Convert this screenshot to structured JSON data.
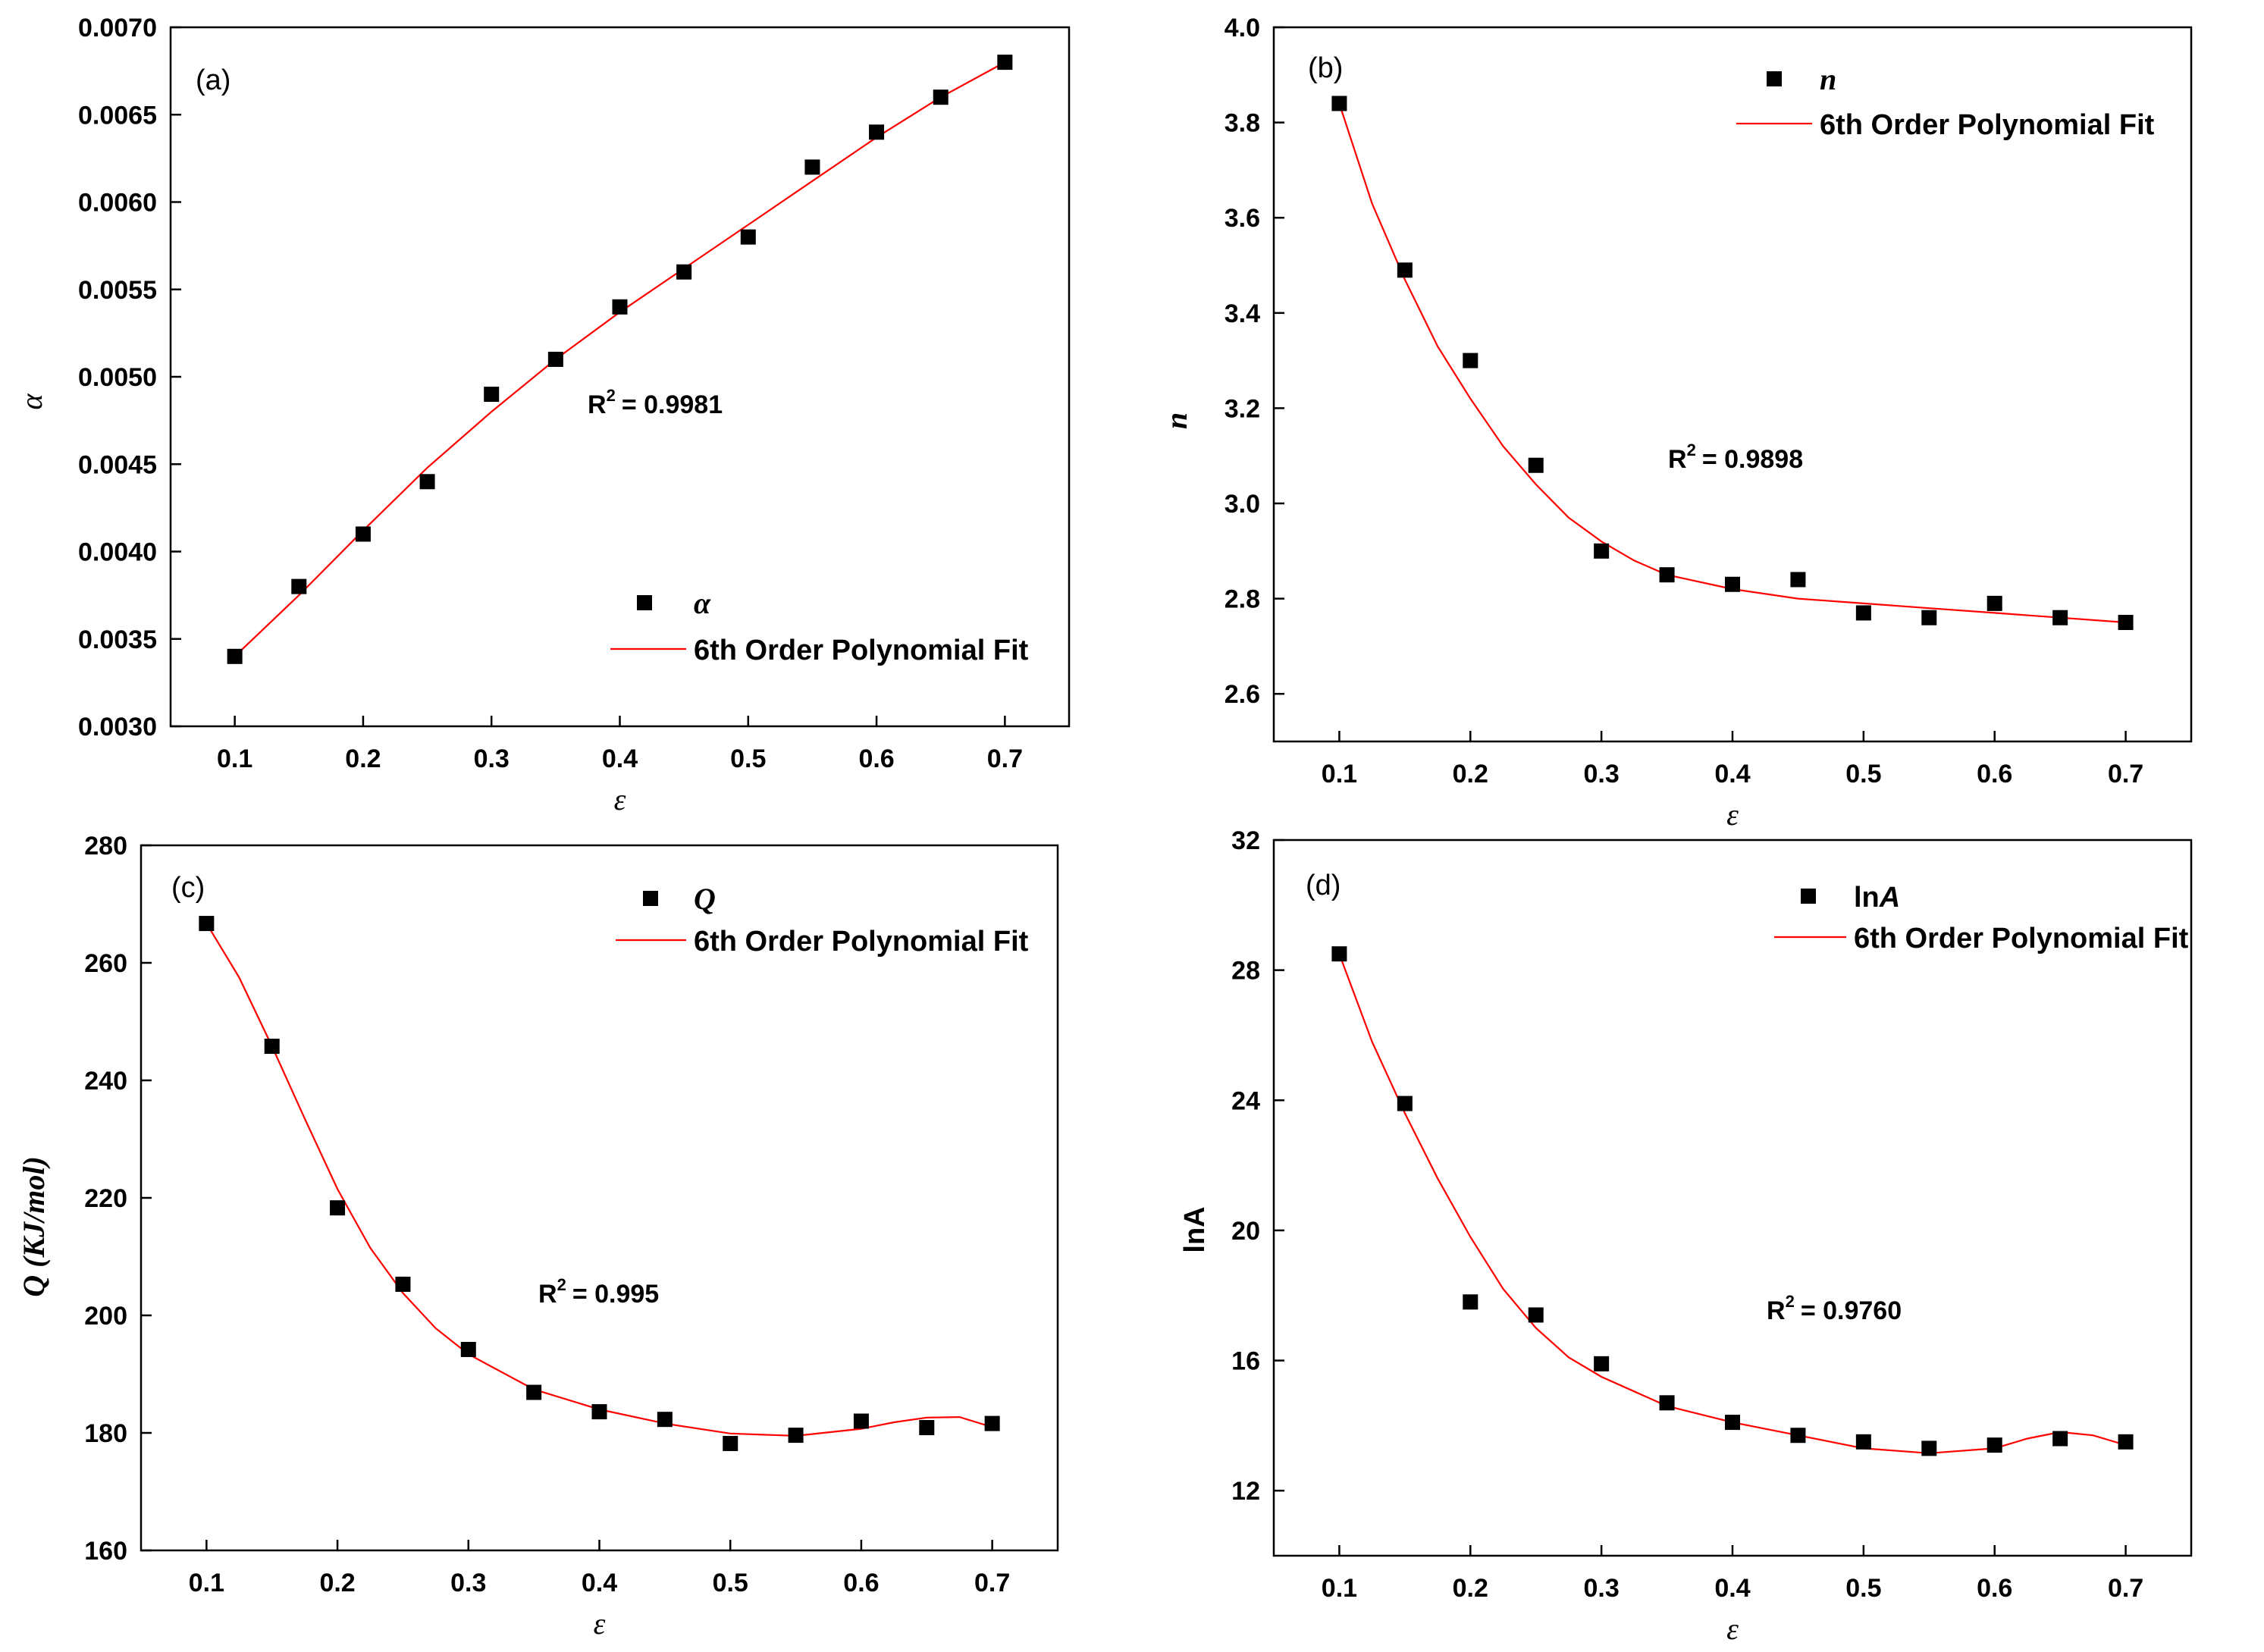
{
  "chart_data": [
    {
      "type": "scatter",
      "panel": "(a)",
      "xlabel": "ε",
      "ylabel": "α",
      "xlim": [
        0.05,
        0.75
      ],
      "ylim": [
        0.003,
        0.007
      ],
      "xticks": [
        "0.1",
        "0.2",
        "0.3",
        "0.4",
        "0.5",
        "0.6",
        "0.7"
      ],
      "yticks": [
        "0.0030",
        "0.0035",
        "0.0040",
        "0.0045",
        "0.0050",
        "0.0055",
        "0.0060",
        "0.0065",
        "0.0070"
      ],
      "r2": "= 0.9981",
      "legend": {
        "marker_label": "α",
        "line_label": "6th Order Polynomial Fit",
        "position": "lower-right"
      },
      "series": [
        {
          "name": "α",
          "x": [
            0.1,
            0.15,
            0.2,
            0.25,
            0.3,
            0.35,
            0.4,
            0.45,
            0.5,
            0.55,
            0.6,
            0.65,
            0.7
          ],
          "y": [
            0.0034,
            0.0038,
            0.0041,
            0.0044,
            0.0049,
            0.0051,
            0.0054,
            0.0056,
            0.0058,
            0.0062,
            0.0064,
            0.0066,
            0.0068
          ]
        },
        {
          "name": "6th Order Polynomial Fit",
          "x": [
            0.1,
            0.15,
            0.2,
            0.25,
            0.3,
            0.35,
            0.4,
            0.45,
            0.5,
            0.55,
            0.6,
            0.65,
            0.7
          ],
          "y": [
            0.0034,
            0.00375,
            0.00412,
            0.00448,
            0.0048,
            0.0051,
            0.00537,
            0.00562,
            0.00587,
            0.00612,
            0.00637,
            0.0066,
            0.0068
          ]
        }
      ]
    },
    {
      "type": "scatter",
      "panel": "(b)",
      "xlabel": "ε",
      "ylabel": "n",
      "xlim": [
        0.05,
        0.75
      ],
      "ylim": [
        2.5,
        4.0
      ],
      "xticks": [
        "0.1",
        "0.2",
        "0.3",
        "0.4",
        "0.5",
        "0.6",
        "0.7"
      ],
      "yticks": [
        "2.6",
        "2.8",
        "3.0",
        "3.2",
        "3.4",
        "3.6",
        "3.8",
        "4.0"
      ],
      "r2": "= 0.9898",
      "legend": {
        "marker_label": "n",
        "line_label": "6th Order Polynomial Fit",
        "position": "top-right"
      },
      "series": [
        {
          "name": "n",
          "x": [
            0.1,
            0.15,
            0.2,
            0.25,
            0.3,
            0.35,
            0.4,
            0.45,
            0.5,
            0.55,
            0.6,
            0.65,
            0.7
          ],
          "y": [
            3.84,
            3.49,
            3.3,
            3.08,
            2.9,
            2.85,
            2.83,
            2.84,
            2.77,
            2.76,
            2.79,
            2.76,
            2.75
          ]
        },
        {
          "name": "6th Order Polynomial Fit",
          "x": [
            0.1,
            0.125,
            0.15,
            0.175,
            0.2,
            0.225,
            0.25,
            0.275,
            0.3,
            0.325,
            0.35,
            0.4,
            0.45,
            0.5,
            0.55,
            0.6,
            0.65,
            0.7
          ],
          "y": [
            3.84,
            3.63,
            3.47,
            3.33,
            3.22,
            3.12,
            3.04,
            2.97,
            2.92,
            2.88,
            2.85,
            2.82,
            2.8,
            2.79,
            2.78,
            2.77,
            2.76,
            2.75
          ]
        }
      ]
    },
    {
      "type": "scatter",
      "panel": "(c)",
      "xlabel": "ε",
      "ylabel": "Q (KJ/mol)",
      "xlim": [
        0.05,
        0.75
      ],
      "ylim": [
        160,
        280
      ],
      "xticks": [
        "0.1",
        "0.2",
        "0.3",
        "0.4",
        "0.5",
        "0.6",
        "0.7"
      ],
      "yticks": [
        "160",
        "180",
        "200",
        "220",
        "240",
        "260",
        "280"
      ],
      "r2": "= 0.995",
      "legend": {
        "marker_label": "Q",
        "line_label": "6th Order Polynomial Fit",
        "position": "top-right"
      },
      "series": [
        {
          "name": "Q",
          "x": [
            0.1,
            0.15,
            0.2,
            0.25,
            0.3,
            0.35,
            0.4,
            0.45,
            0.5,
            0.55,
            0.6,
            0.65,
            0.7
          ],
          "y": [
            266.7,
            245.8,
            218.3,
            205.3,
            194.2,
            186.9,
            183.6,
            182.3,
            178.2,
            179.6,
            182.0,
            180.9,
            181.6
          ]
        },
        {
          "name": "6th Order Polynomial Fit",
          "x": [
            0.1,
            0.125,
            0.15,
            0.175,
            0.2,
            0.225,
            0.25,
            0.275,
            0.3,
            0.35,
            0.4,
            0.45,
            0.5,
            0.55,
            0.6,
            0.625,
            0.65,
            0.675,
            0.7
          ],
          "y": [
            266.7,
            257.5,
            245.8,
            233.5,
            221.5,
            211.5,
            203.8,
            197.8,
            193.4,
            187.4,
            184.0,
            181.6,
            179.9,
            179.5,
            180.7,
            181.8,
            182.6,
            182.7,
            181.0
          ]
        }
      ]
    },
    {
      "type": "scatter",
      "panel": "(d)",
      "xlabel": "ε",
      "ylabel": "lnA",
      "xlim": [
        0.05,
        0.75
      ],
      "ylim": [
        10,
        32
      ],
      "xticks": [
        "0.1",
        "0.2",
        "0.3",
        "0.4",
        "0.5",
        "0.6",
        "0.7"
      ],
      "yticks": [
        "12",
        "16",
        "20",
        "24",
        "28",
        "32"
      ],
      "r2": "= 0.9760",
      "legend": {
        "marker_label": "lnA",
        "line_label": "6th Order Polynomial Fit",
        "position": "top-right"
      },
      "series": [
        {
          "name": "lnA",
          "x": [
            0.1,
            0.15,
            0.2,
            0.25,
            0.3,
            0.35,
            0.4,
            0.45,
            0.5,
            0.55,
            0.6,
            0.65,
            0.7
          ],
          "y": [
            28.5,
            23.9,
            17.8,
            17.4,
            15.9,
            14.7,
            14.1,
            13.7,
            13.5,
            13.3,
            13.4,
            13.6,
            13.5
          ]
        },
        {
          "name": "6th Order Polynomial Fit",
          "x": [
            0.1,
            0.125,
            0.15,
            0.175,
            0.2,
            0.225,
            0.25,
            0.275,
            0.3,
            0.35,
            0.4,
            0.45,
            0.5,
            0.55,
            0.6,
            0.625,
            0.65,
            0.675,
            0.7
          ],
          "y": [
            28.5,
            25.8,
            23.6,
            21.6,
            19.8,
            18.2,
            17.0,
            16.1,
            15.5,
            14.6,
            14.1,
            13.7,
            13.3,
            13.15,
            13.3,
            13.6,
            13.8,
            13.7,
            13.4
          ]
        }
      ]
    }
  ]
}
